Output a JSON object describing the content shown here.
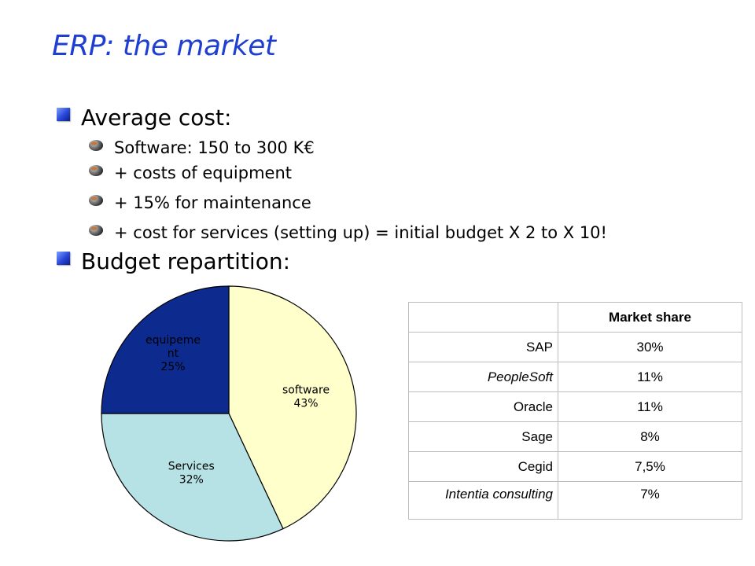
{
  "slide": {
    "title": "ERP: the market",
    "bullets": [
      {
        "label": "Average cost:",
        "sub": [
          "Software: 150 to 300 K€",
          "+ costs of equipment",
          "+ 15% for maintenance",
          "+ cost for services (setting up) = initial budget X 2 to X 10!"
        ]
      },
      {
        "label": "Budget repartition:"
      }
    ]
  },
  "chart_data": {
    "type": "pie",
    "slices": [
      {
        "label": "software",
        "percent_label": "43%",
        "value": 43,
        "color": "#ffffcc"
      },
      {
        "label": "Services",
        "percent_label": "32%",
        "value": 32,
        "color": "#b7e2e5"
      },
      {
        "label": "equipement",
        "label_wrapped": [
          "equipeme",
          "nt"
        ],
        "percent_label": "25%",
        "value": 25,
        "color": "#0d2a8e"
      }
    ]
  },
  "market_table": {
    "header": [
      "",
      "Market share"
    ],
    "rows": [
      {
        "company": "SAP",
        "share": "30%",
        "italic": false
      },
      {
        "company": "PeopleSoft",
        "share": "11%",
        "italic": true
      },
      {
        "company": "Oracle",
        "share": "11%",
        "italic": false
      },
      {
        "company": "Sage",
        "share": "8%",
        "italic": false
      },
      {
        "company": "Cegid",
        "share": "7,5%",
        "italic": false
      },
      {
        "company": "Intentia consulting",
        "share": "7%",
        "italic": true
      }
    ]
  }
}
